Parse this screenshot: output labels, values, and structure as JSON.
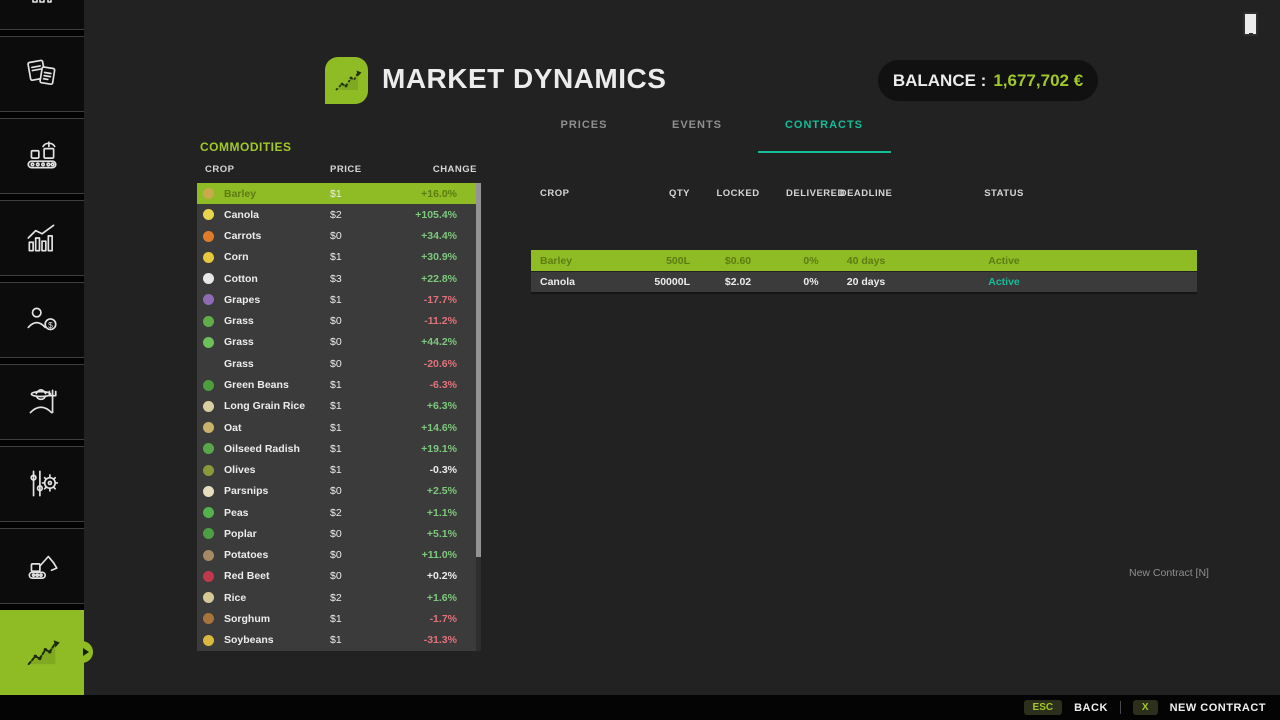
{
  "header": {
    "title": "MARKET DYNAMICS",
    "balance_label": "BALANCE :",
    "balance_value": "1,677,702 €"
  },
  "tabs": [
    {
      "label": "PRICES",
      "active": false
    },
    {
      "label": "EVENTS",
      "active": false
    },
    {
      "label": "CONTRACTS",
      "active": true
    }
  ],
  "sidebar": {
    "items": [
      "vehicles-partial-icon",
      "documents-icon",
      "production-icon",
      "statistics-icon",
      "sales-icon",
      "farmer-icon",
      "settings-icon",
      "construction-icon",
      "market-dynamics-icon"
    ]
  },
  "commodities": {
    "section_title": "COMMODITIES",
    "columns": [
      "CROP",
      "PRICE",
      "CHANGE"
    ],
    "rows": [
      {
        "crop": "Barley",
        "price": "$1",
        "change": "+16.0%",
        "trend": "up",
        "icon_color": "#c9a94e",
        "selected": true
      },
      {
        "crop": "Canola",
        "price": "$2",
        "change": "+105.4%",
        "trend": "up",
        "icon_color": "#e8d44d",
        "selected": false
      },
      {
        "crop": "Carrots",
        "price": "$0",
        "change": "+34.4%",
        "trend": "up",
        "icon_color": "#e07b2a",
        "selected": false
      },
      {
        "crop": "Corn",
        "price": "$1",
        "change": "+30.9%",
        "trend": "up",
        "icon_color": "#e8c83c",
        "selected": false
      },
      {
        "crop": "Cotton",
        "price": "$3",
        "change": "+22.8%",
        "trend": "up",
        "icon_color": "#e8e8e8",
        "selected": false
      },
      {
        "crop": "Grapes",
        "price": "$1",
        "change": "-17.7%",
        "trend": "down",
        "icon_color": "#8e6bb5",
        "selected": false
      },
      {
        "crop": "Grass",
        "price": "$0",
        "change": "-11.2%",
        "trend": "down",
        "icon_color": "#5fae4a",
        "selected": false
      },
      {
        "crop": "Grass",
        "price": "$0",
        "change": "+44.2%",
        "trend": "up",
        "icon_color": "#6cc05a",
        "selected": false
      },
      {
        "crop": "Grass",
        "price": "$0",
        "change": "-20.6%",
        "trend": "down",
        "icon_color": "",
        "selected": false
      },
      {
        "crop": "Green Beans",
        "price": "$1",
        "change": "-6.3%",
        "trend": "down",
        "icon_color": "#4f9e3e",
        "selected": false
      },
      {
        "crop": "Long Grain Rice",
        "price": "$1",
        "change": "+6.3%",
        "trend": "up",
        "icon_color": "#d8cfa0",
        "selected": false
      },
      {
        "crop": "Oat",
        "price": "$1",
        "change": "+14.6%",
        "trend": "up",
        "icon_color": "#c9b36a",
        "selected": false
      },
      {
        "crop": "Oilseed Radish",
        "price": "$1",
        "change": "+19.1%",
        "trend": "up",
        "icon_color": "#58a84b",
        "selected": false
      },
      {
        "crop": "Olives",
        "price": "$1",
        "change": "-0.3%",
        "trend": "neutral",
        "icon_color": "#8a9a3a",
        "selected": false
      },
      {
        "crop": "Parsnips",
        "price": "$0",
        "change": "+2.5%",
        "trend": "up",
        "icon_color": "#e5ddc0",
        "selected": false
      },
      {
        "crop": "Peas",
        "price": "$2",
        "change": "+1.1%",
        "trend": "up",
        "icon_color": "#55b04e",
        "selected": false
      },
      {
        "crop": "Poplar",
        "price": "$0",
        "change": "+5.1%",
        "trend": "up",
        "icon_color": "#4e9e44",
        "selected": false
      },
      {
        "crop": "Potatoes",
        "price": "$0",
        "change": "+11.0%",
        "trend": "up",
        "icon_color": "#a58a64",
        "selected": false
      },
      {
        "crop": "Red Beet",
        "price": "$0",
        "change": "+0.2%",
        "trend": "neutral",
        "icon_color": "#c0394a",
        "selected": false
      },
      {
        "crop": "Rice",
        "price": "$2",
        "change": "+1.6%",
        "trend": "up",
        "icon_color": "#d6c796",
        "selected": false
      },
      {
        "crop": "Sorghum",
        "price": "$1",
        "change": "-1.7%",
        "trend": "down",
        "icon_color": "#a9743c",
        "selected": false
      },
      {
        "crop": "Soybeans",
        "price": "$1",
        "change": "-31.3%",
        "trend": "down",
        "icon_color": "#d9b93f",
        "selected": false
      }
    ]
  },
  "contracts": {
    "columns": [
      "CROP",
      "QTY",
      "LOCKED",
      "DELIVERED",
      "DEADLINE",
      "STATUS"
    ],
    "rows": [
      {
        "crop": "Barley",
        "qty": "500L",
        "locked": "$0.60",
        "delivered": "0%",
        "deadline": "40 days",
        "status": "Active",
        "selected": true
      },
      {
        "crop": "Canola",
        "qty": "50000L",
        "locked": "$2.02",
        "delivered": "0%",
        "deadline": "20 days",
        "status": "Active",
        "selected": false
      }
    ],
    "new_contract_hint": "New Contract [N]"
  },
  "footer": {
    "back_key": "ESC",
    "back_label": "BACK",
    "new_contract_key": "X",
    "new_contract_label": "NEW CONTRACT"
  },
  "colors": {
    "accent_green": "#8fbb24",
    "accent_text_green": "#a0c828",
    "teal": "#14bd98",
    "positive": "#7dc87d",
    "negative": "#e0737a",
    "neutral": "#ececec",
    "selected_row_text": "#5d7c12",
    "row_background": "#3b3b3b",
    "page_background": "#222222"
  }
}
